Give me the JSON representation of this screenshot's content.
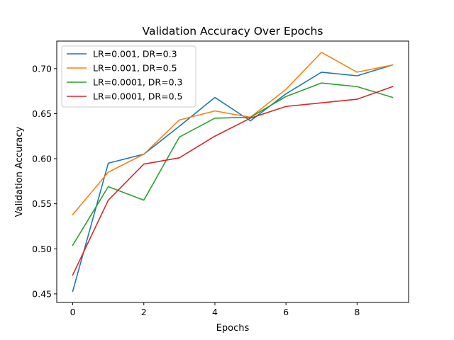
{
  "chart_data": {
    "type": "line",
    "title": "Validation Accuracy Over Epochs",
    "xlabel": "Epochs",
    "ylabel": "Validation Accuracy",
    "x": [
      0,
      1,
      2,
      3,
      4,
      5,
      6,
      7,
      8,
      9
    ],
    "xlim": [
      -0.45,
      9.45
    ],
    "ylim": [
      0.4405,
      0.7305
    ],
    "xticks": [
      0,
      2,
      4,
      6,
      8
    ],
    "yticks": [
      0.45,
      0.5,
      0.55,
      0.6,
      0.65,
      0.7
    ],
    "ytick_labels": [
      "0.45",
      "0.50",
      "0.55",
      "0.60",
      "0.65",
      "0.70"
    ],
    "grid": false,
    "legend_position": "top-left",
    "series": [
      {
        "name": "LR=0.001, DR=0.3",
        "color": "#1f77b4",
        "values": [
          0.453,
          0.595,
          0.605,
          0.636,
          0.668,
          0.642,
          0.672,
          0.696,
          0.692,
          0.704
        ]
      },
      {
        "name": "LR=0.001, DR=0.5",
        "color": "#ff7f0e",
        "values": [
          0.538,
          0.585,
          0.605,
          0.643,
          0.653,
          0.646,
          0.677,
          0.718,
          0.696,
          0.704
        ]
      },
      {
        "name": "LR=0.0001, DR=0.3",
        "color": "#2ca02c",
        "values": [
          0.504,
          0.569,
          0.554,
          0.624,
          0.645,
          0.646,
          0.669,
          0.684,
          0.68,
          0.668
        ]
      },
      {
        "name": "LR=0.0001, DR=0.5",
        "color": "#d62728",
        "values": [
          0.471,
          0.554,
          0.594,
          0.601,
          0.625,
          0.645,
          0.658,
          0.662,
          0.666,
          0.68
        ]
      }
    ]
  }
}
